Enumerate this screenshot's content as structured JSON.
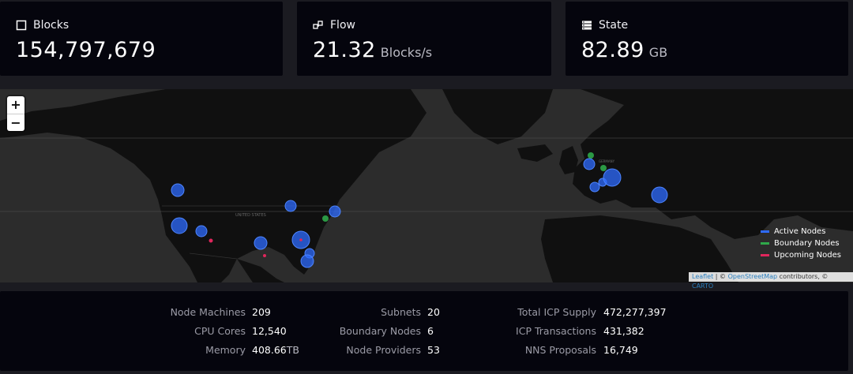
{
  "cards": [
    {
      "title": "Blocks",
      "icon": "square-icon",
      "value": "154,797,679",
      "unit": ""
    },
    {
      "title": "Flow",
      "icon": "flow-icon",
      "value": "21.32",
      "unit": "Blocks/s"
    },
    {
      "title": "State",
      "icon": "database-icon",
      "value": "82.89",
      "unit": "GB"
    }
  ],
  "map": {
    "zoom_in": "+",
    "zoom_out": "−",
    "legend": [
      {
        "label": "Active Nodes",
        "color": "#2e6bff"
      },
      {
        "label": "Boundary Nodes",
        "color": "#2fa84a"
      },
      {
        "label": "Upcoming Nodes",
        "color": "#e0265c"
      }
    ],
    "attribution": {
      "leaflet": "Leaflet",
      "sep": " | © ",
      "osm": "OpenStreetMap",
      "mid": " contributors, © ",
      "carto": "CARTO"
    },
    "region_labels": [
      "UNITED STATES",
      "GERMANY"
    ]
  },
  "stats": {
    "col1": [
      {
        "label": "Node Machines",
        "value": "209",
        "unit": ""
      },
      {
        "label": "CPU Cores",
        "value": "12,540",
        "unit": ""
      },
      {
        "label": "Memory",
        "value": "408.66",
        "unit": "TB"
      }
    ],
    "col2": [
      {
        "label": "Subnets",
        "value": "20",
        "unit": ""
      },
      {
        "label": "Boundary Nodes",
        "value": "6",
        "unit": ""
      },
      {
        "label": "Node Providers",
        "value": "53",
        "unit": ""
      }
    ],
    "col3": [
      {
        "label": "Total ICP Supply",
        "value": "472,277,397",
        "unit": ""
      },
      {
        "label": "ICP Transactions",
        "value": "431,382",
        "unit": ""
      },
      {
        "label": "NNS Proposals",
        "value": "16,749",
        "unit": ""
      }
    ]
  }
}
